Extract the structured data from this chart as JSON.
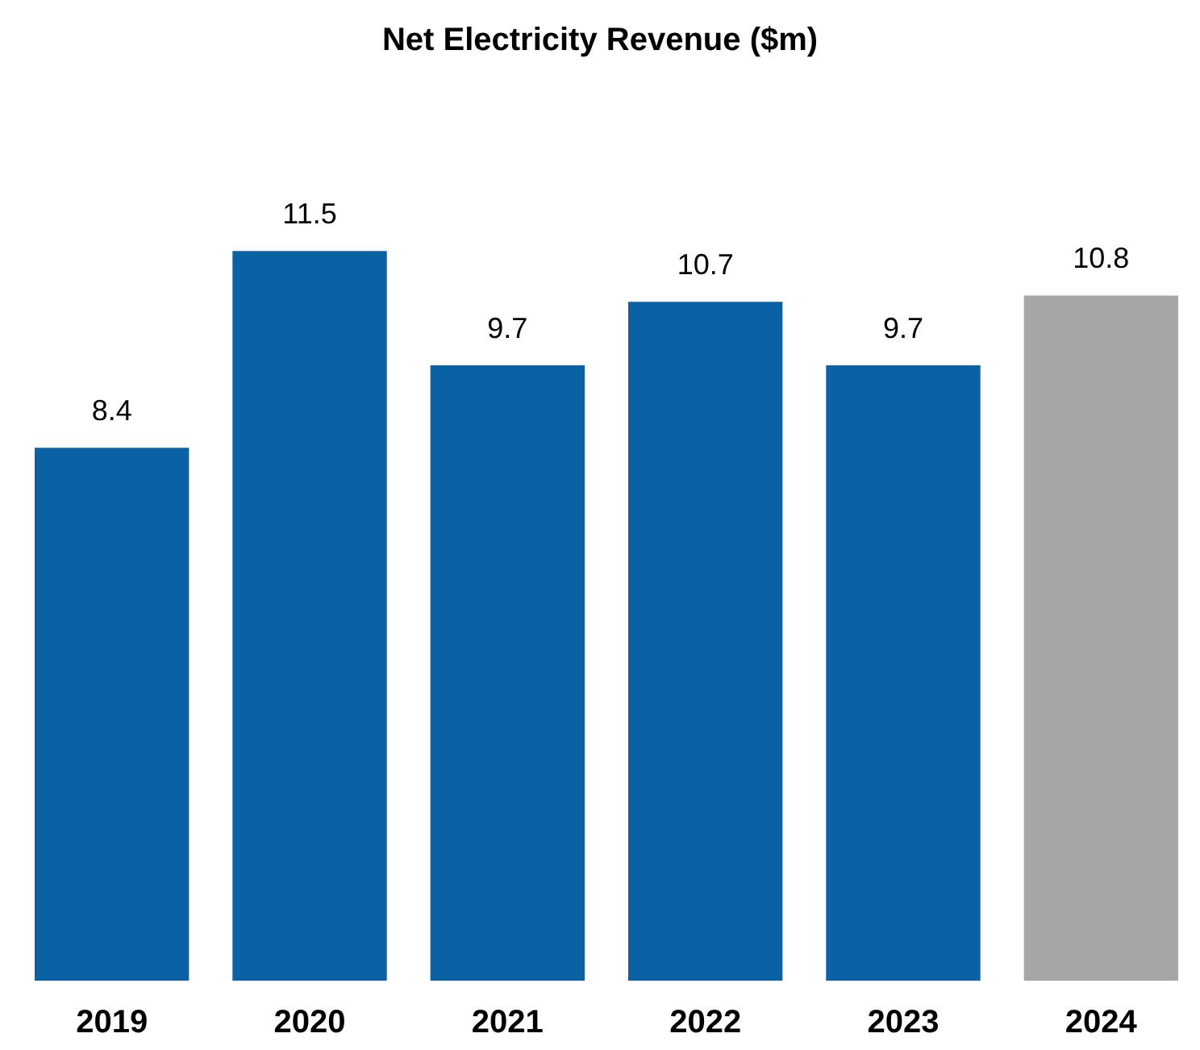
{
  "chart_data": {
    "type": "bar",
    "title": "Net Electricity Revenue ($m)",
    "categories": [
      "2019",
      "2020",
      "2021",
      "2022",
      "2023",
      "2024"
    ],
    "values": [
      8.4,
      11.5,
      9.7,
      10.7,
      9.7,
      10.8
    ],
    "colors": [
      "#0a62a5",
      "#0a62a5",
      "#0a62a5",
      "#0a62a5",
      "#0a62a5",
      "#a6a6a6"
    ],
    "data_labels": true
  }
}
